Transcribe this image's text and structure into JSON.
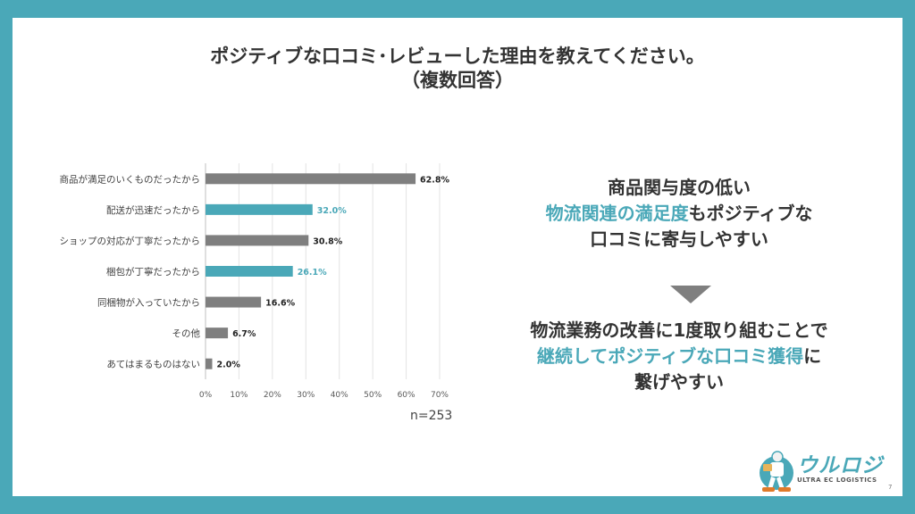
{
  "title": {
    "line1": "ポジティブな口コミ･レビューした理由を教えてください。",
    "line2": "（複数回答）"
  },
  "chart_data": {
    "type": "bar",
    "orientation": "horizontal",
    "categories": [
      "商品が満足のいくものだったから",
      "配送が迅速だったから",
      "ショップの対応が丁寧だったから",
      "梱包が丁寧だったから",
      "同梱物が入っていたから",
      "その他",
      "あてはまるものはない"
    ],
    "values": [
      62.8,
      32.0,
      30.8,
      26.1,
      16.6,
      6.7,
      2.0
    ],
    "value_labels": [
      "62.8%",
      "32.0%",
      "30.8%",
      "26.1%",
      "16.6%",
      "6.7%",
      "2.0%"
    ],
    "highlighted": [
      false,
      true,
      false,
      true,
      false,
      false,
      false
    ],
    "xlim": [
      0,
      70
    ],
    "ticks": [
      0,
      10,
      20,
      30,
      40,
      50,
      60,
      70
    ],
    "tick_labels": [
      "0%",
      "10%",
      "20%",
      "30%",
      "40%",
      "50%",
      "60%",
      "70%"
    ],
    "grid": true,
    "sample_size": "n=253",
    "colors": {
      "default": "#7f7f7f",
      "highlight": "#4aa8b8"
    }
  },
  "summary": {
    "block1": {
      "line1": "商品関与度の低い",
      "line2_accent": "物流関連の満足度",
      "line2_rest": "もポジティブな",
      "line3": "口コミに寄与しやすい"
    },
    "block2": {
      "line1": "物流業務の改善に1度取り組むことで",
      "line2_accent": "継続してポジティブな口コミ獲得",
      "line2_rest": "に",
      "line3": "繋げやすい"
    }
  },
  "logo": {
    "name": "ウルロジ",
    "tagline": "ULTRA EC LOGISTICS"
  },
  "page_number": "7"
}
